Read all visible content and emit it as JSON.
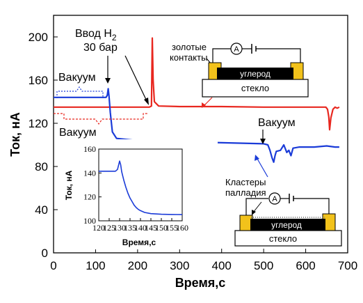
{
  "chart_data": [
    {
      "type": "line",
      "xlabel": "Время,с",
      "ylabel": "Ток, нА",
      "xlim": [
        0,
        700
      ],
      "ylim": [
        0,
        220
      ],
      "x_ticks": [
        0,
        100,
        200,
        300,
        400,
        500,
        600,
        700
      ],
      "y_ticks": [
        0,
        40,
        80,
        120,
        160,
        200
      ],
      "grid": false,
      "series": [
        {
          "color": "#e8271f",
          "points": [
            [
              0,
              135
            ],
            [
              100,
              135
            ],
            [
              150,
              135
            ],
            [
              200,
              135
            ],
            [
              228,
              135
            ],
            [
              233,
              136
            ],
            [
              235,
              199
            ],
            [
              237,
              160
            ],
            [
              240,
              140
            ],
            [
              250,
              136
            ],
            [
              300,
              135.5
            ],
            [
              400,
              135.5
            ],
            [
              500,
              135
            ],
            [
              600,
              135
            ],
            [
              648,
              135
            ],
            [
              652,
              133
            ],
            [
              655,
              126
            ],
            [
              657,
              114
            ],
            [
              660,
              125
            ],
            [
              665,
              133
            ],
            [
              670,
              135
            ],
            [
              675,
              134
            ],
            [
              680,
              135
            ]
          ]
        },
        {
          "color": "#1a3bd8",
          "points": [
            [
              0,
              144
            ],
            [
              100,
              144
            ],
            [
              125,
              144
            ],
            [
              128,
              146
            ],
            [
              130,
              152
            ],
            [
              132,
              145
            ],
            [
              135,
              130
            ],
            [
              140,
              112
            ],
            [
              150,
              106
            ],
            [
              200,
              104
            ],
            [
              300,
              103
            ],
            [
              400,
              102
            ],
            [
              500,
              101
            ],
            [
              510,
              100
            ],
            [
              515,
              95
            ],
            [
              520,
              88
            ],
            [
              524,
              84
            ],
            [
              527,
              90
            ],
            [
              530,
              94
            ],
            [
              540,
              95
            ],
            [
              548,
              100
            ],
            [
              555,
              93
            ],
            [
              560,
              95
            ],
            [
              565,
              90
            ],
            [
              570,
              97
            ],
            [
              585,
              98
            ],
            [
              600,
              98
            ],
            [
              620,
              98
            ],
            [
              650,
              99
            ],
            [
              670,
              98
            ],
            [
              680,
              98
            ]
          ]
        }
      ],
      "annotations": [
        "Ввод H",
        "2",
        "30 бар",
        "Вакуум",
        "Вакуум",
        "Вакуум",
        "Кластеры",
        "палладия"
      ]
    },
    {
      "type": "line",
      "xlabel": "Время,с",
      "ylabel": "Ток, нА",
      "xlim": [
        120,
        160
      ],
      "ylim": [
        100,
        160
      ],
      "x_ticks": [
        120,
        125,
        130,
        135,
        140,
        145,
        150,
        155,
        160
      ],
      "y_ticks": [
        100,
        120,
        140,
        160
      ],
      "series": [
        {
          "color": "#1a3bd8",
          "points": [
            [
              120,
              141.5
            ],
            [
              125,
              141.5
            ],
            [
              128,
              141.5
            ],
            [
              129,
              143
            ],
            [
              130,
              150
            ],
            [
              130.5,
              147
            ],
            [
              131,
              141
            ],
            [
              132,
              134
            ],
            [
              133,
              128
            ],
            [
              134,
              123
            ],
            [
              135,
              119
            ],
            [
              136,
              116
            ],
            [
              137,
              113
            ],
            [
              138,
              111
            ],
            [
              139,
              109.5
            ],
            [
              140,
              108.5
            ],
            [
              142,
              107
            ],
            [
              145,
              106
            ],
            [
              150,
              105.5
            ],
            [
              155,
              105.3
            ],
            [
              160,
              105.2
            ]
          ]
        }
      ]
    }
  ],
  "diagrams": {
    "top": {
      "labels": [
        "золотые",
        "контакты"
      ],
      "meter": "A",
      "chip": "углерод",
      "substrate": "стекло"
    },
    "bottom": {
      "meter": "A",
      "chip": "углерод",
      "substrate": "стекло"
    }
  },
  "colors": {
    "red": "#e8271f",
    "blue": "#1a3bd8",
    "gold": "#f2c21b",
    "black": "#000000"
  }
}
